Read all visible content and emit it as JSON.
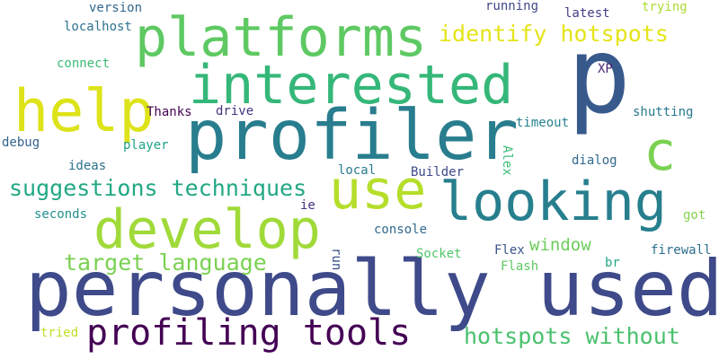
{
  "words": [
    {
      "id": "personally-used",
      "text": "personally used",
      "color": "#3e4a89"
    },
    {
      "id": "profiler",
      "text": "profiler",
      "color": "#287d8e"
    },
    {
      "id": "p",
      "text": "p",
      "color": "#38598c"
    },
    {
      "id": "interested",
      "text": "interested",
      "color": "#35b779"
    },
    {
      "id": "platforms",
      "text": "platforms",
      "color": "#5ec962"
    },
    {
      "id": "looking",
      "text": "looking",
      "color": "#277f8e"
    },
    {
      "id": "develop",
      "text": "develop",
      "color": "#a0da39"
    },
    {
      "id": "help",
      "text": "help",
      "color": "#dde318"
    },
    {
      "id": "use",
      "text": "use",
      "color": "#b5de2b"
    },
    {
      "id": "c",
      "text": "c",
      "color": "#7ad151"
    },
    {
      "id": "profiling-tools",
      "text": "profiling tools",
      "color": "#440154"
    },
    {
      "id": "hotspots-without",
      "text": "hotspots without",
      "color": "#4ac16d"
    },
    {
      "id": "suggestions-techniques",
      "text": "suggestions techniques",
      "color": "#22a884"
    },
    {
      "id": "target-language",
      "text": "target language",
      "color": "#7ad151"
    },
    {
      "id": "identify-hotspots",
      "text": "identify hotspots",
      "color": "#e5e419"
    },
    {
      "id": "window",
      "text": "window",
      "color": "#6ccd5a"
    },
    {
      "id": "version",
      "text": "version",
      "color": "#31688e"
    },
    {
      "id": "localhost",
      "text": "localhost",
      "color": "#2c728e"
    },
    {
      "id": "running",
      "text": "running",
      "color": "#3f4788"
    },
    {
      "id": "latest",
      "text": "latest",
      "color": "#433e85"
    },
    {
      "id": "trying",
      "text": "trying",
      "color": "#addc30"
    },
    {
      "id": "connect",
      "text": "connect",
      "color": "#3bbb75"
    },
    {
      "id": "xp",
      "text": "XP",
      "color": "#482878"
    },
    {
      "id": "thanks",
      "text": "Thanks",
      "color": "#440154"
    },
    {
      "id": "drive",
      "text": "drive",
      "color": "#46337e"
    },
    {
      "id": "shutting",
      "text": "shutting",
      "color": "#2a788e"
    },
    {
      "id": "timeout",
      "text": "timeout",
      "color": "#26828e"
    },
    {
      "id": "debug",
      "text": "debug",
      "color": "#33638d"
    },
    {
      "id": "player",
      "text": "player",
      "color": "#1fa187"
    },
    {
      "id": "alex",
      "text": "Alex",
      "color": "#3bbb75"
    },
    {
      "id": "dialog",
      "text": "dialog",
      "color": "#31688e"
    },
    {
      "id": "ideas",
      "text": "ideas",
      "color": "#2c728e"
    },
    {
      "id": "local",
      "text": "local",
      "color": "#297b8e"
    },
    {
      "id": "builder",
      "text": "Builder",
      "color": "#3e4989"
    },
    {
      "id": "seconds",
      "text": "seconds",
      "color": "#21918c"
    },
    {
      "id": "ie",
      "text": "ie",
      "color": "#46327e"
    },
    {
      "id": "got",
      "text": "got",
      "color": "#84d44b"
    },
    {
      "id": "console",
      "text": "console",
      "color": "#31688e"
    },
    {
      "id": "run",
      "text": "run",
      "color": "#3b528b"
    },
    {
      "id": "socket",
      "text": "Socket",
      "color": "#52c569"
    },
    {
      "id": "flex",
      "text": "Flex",
      "color": "#3b528b"
    },
    {
      "id": "firewall",
      "text": "firewall",
      "color": "#2d708e"
    },
    {
      "id": "flash",
      "text": "Flash",
      "color": "#5ec962"
    },
    {
      "id": "br",
      "text": "br",
      "color": "#22a884"
    },
    {
      "id": "tried",
      "text": "tried",
      "color": "#c0df25"
    }
  ]
}
